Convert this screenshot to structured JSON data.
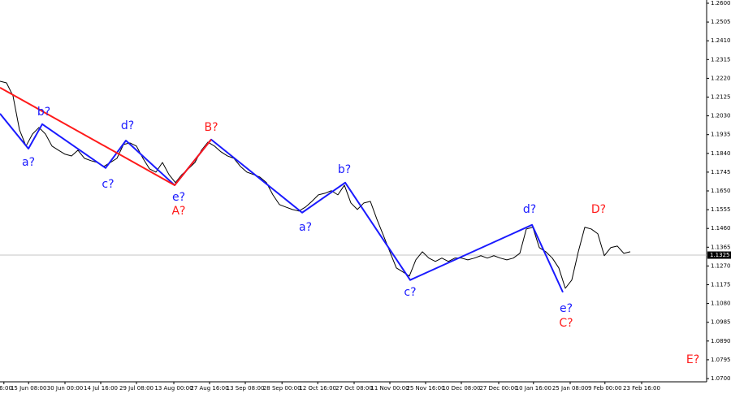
{
  "chart_data": {
    "type": "line",
    "yticks": [
      {
        "value": 1.26,
        "label": "1.2600"
      },
      {
        "value": 1.2505,
        "label": "1.2505"
      },
      {
        "value": 1.241,
        "label": "1.2410"
      },
      {
        "value": 1.2315,
        "label": "1.2315"
      },
      {
        "value": 1.222,
        "label": "1.2220"
      },
      {
        "value": 1.2125,
        "label": "1.2125"
      },
      {
        "value": 1.203,
        "label": "1.2030"
      },
      {
        "value": 1.1935,
        "label": "1.1935"
      },
      {
        "value": 1.184,
        "label": "1.1840"
      },
      {
        "value": 1.1745,
        "label": "1.1745"
      },
      {
        "value": 1.165,
        "label": "1.1650"
      },
      {
        "value": 1.1555,
        "label": "1.1555"
      },
      {
        "value": 1.146,
        "label": "1.1460"
      },
      {
        "value": 1.1365,
        "label": "1.1365"
      },
      {
        "value": 1.127,
        "label": "1.1270"
      },
      {
        "value": 1.1175,
        "label": "1.1175"
      },
      {
        "value": 1.108,
        "label": "1.1080"
      },
      {
        "value": 1.0985,
        "label": "1.0985"
      },
      {
        "value": 1.089,
        "label": "1.0890"
      },
      {
        "value": 1.0795,
        "label": "1.0795"
      },
      {
        "value": 1.07,
        "label": "1.0700"
      }
    ],
    "ylim": [
      1.07,
      1.26
    ],
    "xlim": [
      0,
      108.75
    ],
    "xticks": [
      {
        "value": 0.6,
        "label": "16:00"
      },
      {
        "value": 4.4,
        "label": "15 Jun 08:00"
      },
      {
        "value": 10,
        "label": "30 Jun 00:00"
      },
      {
        "value": 15.5,
        "label": "14 Jul 16:00"
      },
      {
        "value": 21,
        "label": "29 Jul 08:00"
      },
      {
        "value": 26.75,
        "label": "13 Aug 00:00"
      },
      {
        "value": 32.25,
        "label": "27 Aug 16:00"
      },
      {
        "value": 37.75,
        "label": "13 Sep 08:00"
      },
      {
        "value": 43.4,
        "label": "28 Sep 00:00"
      },
      {
        "value": 48.9,
        "label": "12 Oct 16:00"
      },
      {
        "value": 54.5,
        "label": "27 Oct 08:00"
      },
      {
        "value": 60,
        "label": "11 Nov 00:00"
      },
      {
        "value": 65.5,
        "label": "25 Nov 16:00"
      },
      {
        "value": 71,
        "label": "10 Dec 08:00"
      },
      {
        "value": 76.75,
        "label": "27 Dec 00:00"
      },
      {
        "value": 82.1,
        "label": "10 Jan 16:00"
      },
      {
        "value": 87.75,
        "label": "25 Jan 08:00"
      },
      {
        "value": 93.1,
        "label": "9 Feb 00:00"
      },
      {
        "value": 98.75,
        "label": "23 Feb 16:00"
      }
    ],
    "current_price": {
      "value": 1.1325,
      "label": "1.1325"
    },
    "series": [
      {
        "color": "#000000",
        "x": [
          0,
          1,
          2,
          3,
          4,
          5,
          6,
          7,
          8,
          9,
          10,
          11,
          12,
          13,
          14,
          15,
          16,
          17,
          18,
          19,
          20,
          21,
          22,
          23,
          24,
          25,
          26,
          27,
          28,
          29,
          30,
          31,
          32,
          33,
          34,
          35,
          36,
          37,
          38,
          39,
          40,
          41,
          42,
          43,
          44,
          45,
          46,
          47,
          48,
          49,
          50,
          51,
          52,
          53,
          54,
          55,
          56,
          57,
          58,
          59,
          60,
          61,
          62,
          63,
          64,
          65,
          66,
          67,
          68,
          69,
          70,
          71,
          72,
          73,
          74,
          75,
          76,
          77,
          78,
          79,
          80,
          81,
          82,
          83,
          84,
          85,
          86,
          87,
          88,
          89,
          90,
          91,
          92,
          93,
          94,
          95,
          96,
          97
        ],
        "values": [
          1.2205,
          1.2197,
          1.2131,
          1.1959,
          1.1877,
          1.1938,
          1.1971,
          1.1938,
          1.1877,
          1.1856,
          1.1836,
          1.1827,
          1.1856,
          1.1815,
          1.1803,
          1.1794,
          1.1774,
          1.1794,
          1.1815,
          1.1885,
          1.1893,
          1.1877,
          1.1815,
          1.1762,
          1.1745,
          1.1794,
          1.1733,
          1.1692,
          1.1733,
          1.1762,
          1.1794,
          1.1856,
          1.1897,
          1.1877,
          1.1848,
          1.1827,
          1.1815,
          1.1774,
          1.1745,
          1.1733,
          1.172,
          1.1692,
          1.163,
          1.1581,
          1.1568,
          1.1556,
          1.1548,
          1.1568,
          1.1597,
          1.163,
          1.1638,
          1.1651,
          1.163,
          1.1679,
          1.1589,
          1.1556,
          1.1589,
          1.1597,
          1.1507,
          1.1425,
          1.1342,
          1.126,
          1.124,
          1.1219,
          1.1301,
          1.1342,
          1.131,
          1.1293,
          1.131,
          1.1293,
          1.131,
          1.131,
          1.1301,
          1.131,
          1.1322,
          1.131,
          1.1322,
          1.131,
          1.1301,
          1.131,
          1.1334,
          1.1457,
          1.1466,
          1.1363,
          1.1342,
          1.131,
          1.126,
          1.1157,
          1.1199,
          1.1342,
          1.1466,
          1.1457,
          1.1433,
          1.1322,
          1.1363,
          1.1371,
          1.1334,
          1.1342
        ]
      },
      {
        "color": "#1a1aff",
        "x": [
          0,
          4.375,
          6.5,
          16.25,
          19.375,
          26.875,
          32.5,
          46.5,
          53.125,
          63.125,
          81.875,
          86.625
        ],
        "values": [
          1.2041,
          1.1864,
          1.1988,
          1.1766,
          1.1905,
          1.1679,
          1.191,
          1.154,
          1.1692,
          1.1199,
          1.1478,
          1.1137
        ]
      },
      {
        "color": "#ff1a1a",
        "x": [
          0,
          26.875,
          32.5
        ],
        "values": [
          1.2173,
          1.1679,
          1.191
        ]
      }
    ],
    "annotations": [
      {
        "text": "b?",
        "color": "#1a1aff"
      },
      {
        "text": "a?",
        "color": "#1a1aff"
      },
      {
        "text": "c?",
        "color": "#1a1aff"
      },
      {
        "text": "d?",
        "color": "#1a1aff"
      },
      {
        "text": "e?",
        "color": "#1a1aff"
      },
      {
        "text": "A?",
        "color": "#ff1a1a"
      },
      {
        "text": "B?",
        "color": "#ff1a1a"
      },
      {
        "text": "b?",
        "color": "#1a1aff"
      },
      {
        "text": "a?",
        "color": "#1a1aff"
      },
      {
        "text": "c?",
        "color": "#1a1aff"
      },
      {
        "text": "d?",
        "color": "#1a1aff"
      },
      {
        "text": "e?",
        "color": "#1a1aff"
      },
      {
        "text": "C?",
        "color": "#ff1a1a"
      },
      {
        "text": "D?",
        "color": "#ff1a1a"
      },
      {
        "text": "E?",
        "color": "#ff1a1a"
      }
    ]
  }
}
